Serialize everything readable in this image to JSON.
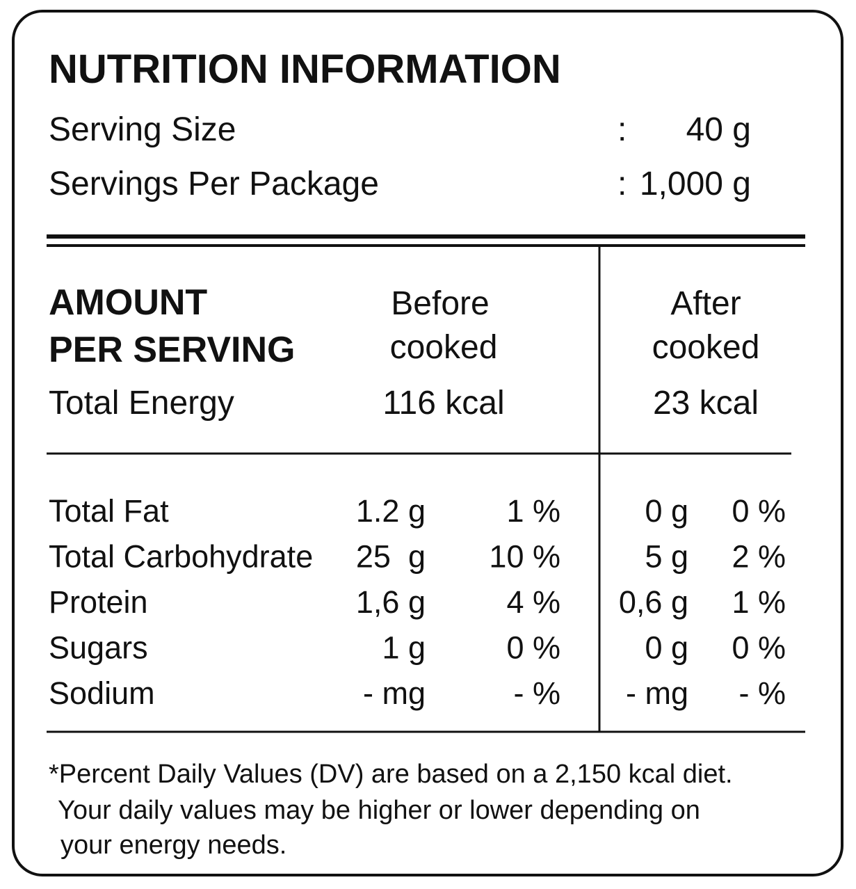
{
  "header": {
    "title": "NUTRITION INFORMATION",
    "serving_size": {
      "label": "Serving Size",
      "separator": ":",
      "value": "40 g"
    },
    "servings_per_package": {
      "label": "Servings Per Package",
      "separator": ":",
      "value": "1,000 g"
    }
  },
  "table": {
    "heading": [
      "AMOUNT",
      "PER SERVING"
    ],
    "columns": [
      [
        "Before",
        "cooked"
      ],
      [
        "After",
        "cooked"
      ]
    ],
    "energy": {
      "label": "Total Energy",
      "before": "116 kcal",
      "after": "23 kcal"
    },
    "rows": [
      [
        "Total Fat",
        "1.2 g",
        "1 %",
        "0 g",
        "0 %"
      ],
      [
        "Total Carbohydrate",
        "25  g",
        "10 %",
        "5 g",
        "2 %"
      ],
      [
        "Protein",
        "1,6 g",
        "4 %",
        "0,6 g",
        "1 %"
      ],
      [
        "Sugars",
        "1 g",
        "0 %",
        "0 g",
        "0 %"
      ],
      [
        "Sodium",
        "- mg",
        "- %",
        "- mg",
        "- %"
      ]
    ]
  },
  "footnote": [
    "*Percent Daily Values (DV) are based on a 2,150 kcal diet.",
    "Your daily values may be higher or lower depending on",
    "your energy needs."
  ]
}
